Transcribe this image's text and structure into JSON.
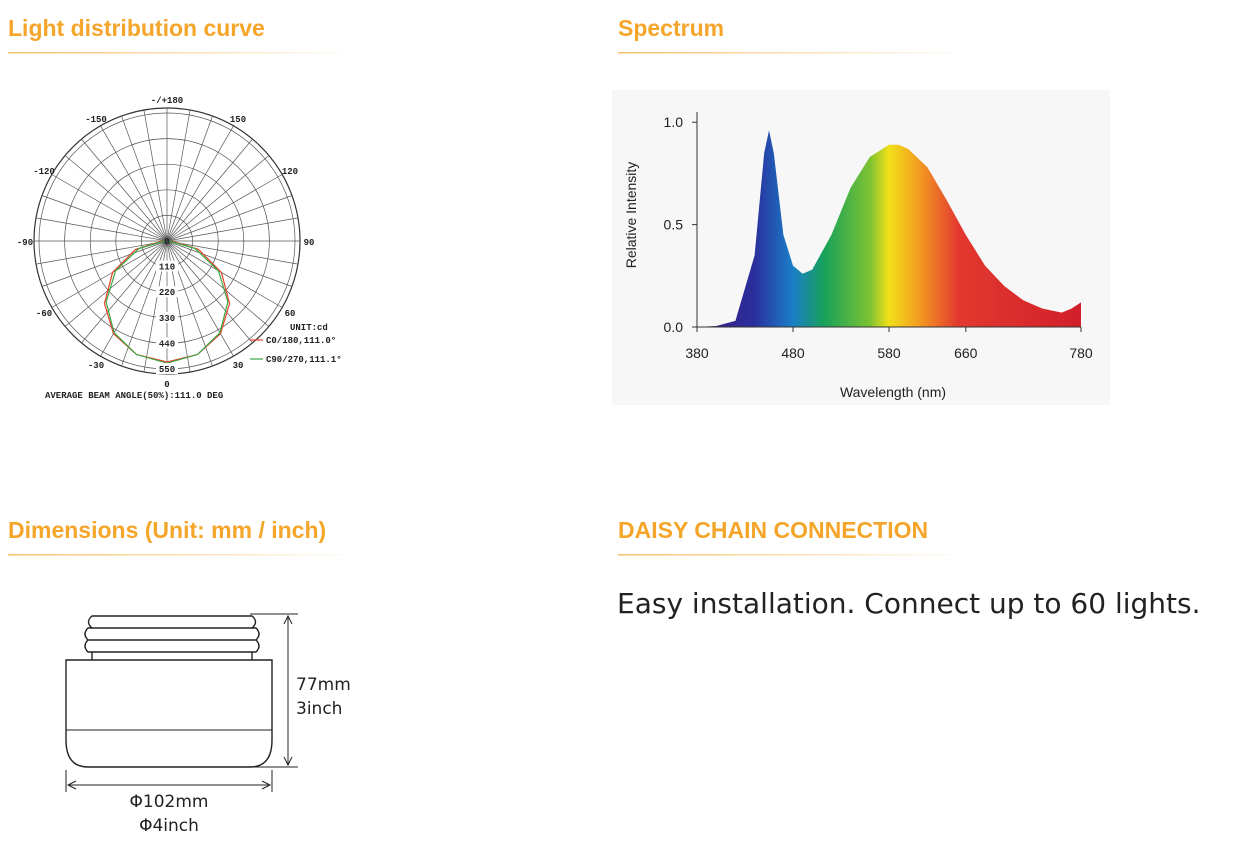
{
  "light_distribution": {
    "heading": "Light distribution curve",
    "type": "polar",
    "angle_ticks": [
      {
        "value": 180,
        "label": "-/+180"
      },
      -150,
      150,
      -120,
      120,
      -90,
      90,
      -60,
      60,
      -30,
      30,
      0
    ],
    "radial_ticks": [
      0,
      110,
      220,
      330,
      440,
      550
    ],
    "angles": [
      -90,
      -75,
      -60,
      -45,
      -30,
      -15,
      0,
      15,
      30,
      45,
      60,
      75,
      90
    ],
    "series": [
      {
        "name": "C0/180,111.0°",
        "color": "#e8412c",
        "values": [
          20,
          140,
          270,
          380,
          460,
          505,
          520,
          505,
          460,
          380,
          270,
          140,
          20
        ]
      },
      {
        "name": "C90/270,111.1°",
        "color": "#3aa845",
        "values": [
          10,
          125,
          255,
          370,
          455,
          505,
          525,
          505,
          455,
          370,
          255,
          125,
          10
        ]
      }
    ],
    "unit_label": "UNIT:cd",
    "note": "AVERAGE BEAM ANGLE(50%):111.0 DEG"
  },
  "spectrum": {
    "heading": "Spectrum",
    "type": "area",
    "y_label": "Relative Intensity",
    "x_label": "Wavelength (nm)",
    "xlim": [
      380,
      780
    ],
    "xticks": [
      380,
      480,
      580,
      660,
      780
    ],
    "ylim": [
      0,
      1.05
    ],
    "yticks": [
      {
        "value": 0,
        "label": "0.0"
      },
      {
        "value": 0.5,
        "label": "0.5"
      },
      {
        "value": 1,
        "label": "1.0"
      }
    ],
    "x": [
      380,
      400,
      420,
      440,
      450,
      455,
      460,
      470,
      480,
      490,
      500,
      520,
      540,
      560,
      580,
      590,
      600,
      620,
      640,
      660,
      680,
      700,
      720,
      740,
      760,
      770,
      780
    ],
    "values": [
      0,
      0.005,
      0.03,
      0.35,
      0.85,
      0.96,
      0.85,
      0.45,
      0.3,
      0.26,
      0.28,
      0.45,
      0.68,
      0.83,
      0.89,
      0.89,
      0.87,
      0.78,
      0.62,
      0.45,
      0.3,
      0.2,
      0.13,
      0.09,
      0.07,
      0.09,
      0.12
    ]
  },
  "dimensions": {
    "heading": "Dimensions (Unit: mm / inch)",
    "height_mm": "77mm",
    "height_inch": "3inch",
    "diameter_mm": "Φ102mm",
    "diameter_inch": "Φ4inch"
  },
  "daisy_chain": {
    "heading": "DAISY CHAIN CONNECTION",
    "text": "Easy installation. Connect up to 60 lights."
  }
}
